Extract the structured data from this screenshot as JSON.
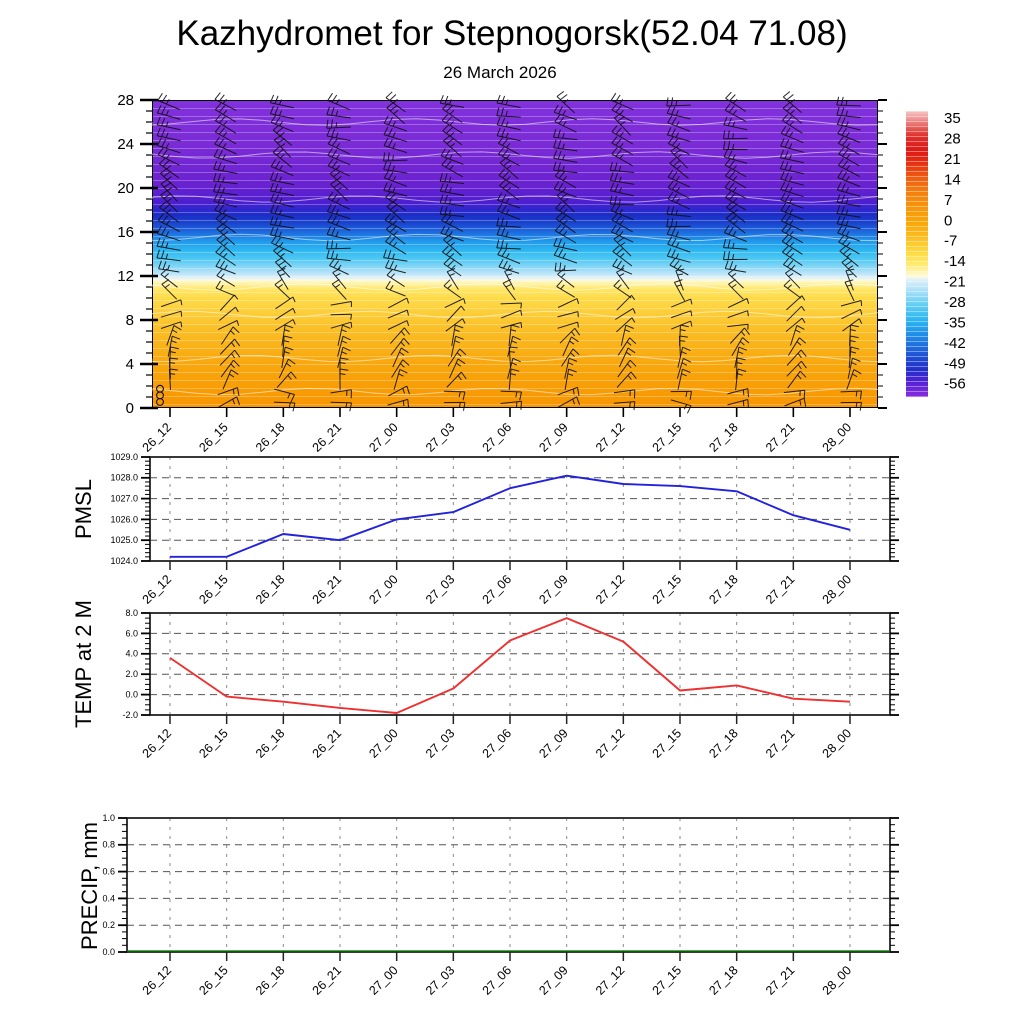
{
  "title": "Kazhydromet for Stepnogorsk(52.04 71.08)",
  "subtitle": "26 March 2026",
  "time_labels": [
    "26_12",
    "26_15",
    "26_18",
    "26_21",
    "27_00",
    "27_03",
    "27_06",
    "27_09",
    "27_12",
    "27_15",
    "27_18",
    "27_21",
    "28_00"
  ],
  "chart_data": [
    {
      "type": "heatmap",
      "name": "temperature-height-cross-section",
      "x_labels": [
        "26_12",
        "26_15",
        "26_18",
        "26_21",
        "27_00",
        "27_03",
        "27_06",
        "27_09",
        "27_12",
        "27_15",
        "27_18",
        "27_21",
        "28_00"
      ],
      "ylim": [
        0,
        28
      ],
      "y_ticks": [
        0,
        4,
        8,
        12,
        16,
        20,
        24,
        28
      ],
      "y_minor_step": 1,
      "grid": false,
      "colorbar_labels": [
        "35",
        "28",
        "21",
        "14",
        "7",
        "0",
        "-7",
        "-14",
        "-21",
        "-28",
        "-35",
        "-42",
        "-49",
        "-56"
      ],
      "colorbar_gradient": [
        {
          "p": 0.0,
          "c": "#F6C4C4"
        },
        {
          "p": 0.03,
          "c": "#EF9090"
        },
        {
          "p": 0.06,
          "c": "#E55A56"
        },
        {
          "p": 0.09,
          "c": "#DD2F2B"
        },
        {
          "p": 0.14,
          "c": "#DC1A16"
        },
        {
          "p": 0.18,
          "c": "#E42F12"
        },
        {
          "p": 0.23,
          "c": "#EE5A12"
        },
        {
          "p": 0.28,
          "c": "#F37E0E"
        },
        {
          "p": 0.33,
          "c": "#F6930A"
        },
        {
          "p": 0.39,
          "c": "#F9A708"
        },
        {
          "p": 0.44,
          "c": "#FBBD20"
        },
        {
          "p": 0.49,
          "c": "#FDD83E"
        },
        {
          "p": 0.53,
          "c": "#FFE865"
        },
        {
          "p": 0.56,
          "c": "#FFF4A8"
        },
        {
          "p": 0.578,
          "c": "#FDFAE0"
        },
        {
          "p": 0.592,
          "c": "#DCEFFA"
        },
        {
          "p": 0.63,
          "c": "#A8E0F8"
        },
        {
          "p": 0.68,
          "c": "#5FCDF4"
        },
        {
          "p": 0.73,
          "c": "#2EB6F0"
        },
        {
          "p": 0.775,
          "c": "#2194EA"
        },
        {
          "p": 0.82,
          "c": "#1F6FDE"
        },
        {
          "p": 0.865,
          "c": "#1F4AD2"
        },
        {
          "p": 0.905,
          "c": "#2430C8"
        },
        {
          "p": 0.94,
          "c": "#4A22D2"
        },
        {
          "p": 1.0,
          "c": "#8A2BE0"
        }
      ],
      "fill_gradient": [
        {
          "p": 0.0,
          "c": "#8232DC"
        },
        {
          "p": 0.15,
          "c": "#7A2BD6"
        },
        {
          "p": 0.27,
          "c": "#6B22D0"
        },
        {
          "p": 0.33,
          "c": "#4F1ECF"
        },
        {
          "p": 0.355,
          "c": "#2F27CE"
        },
        {
          "p": 0.375,
          "c": "#1C2EC6"
        },
        {
          "p": 0.4,
          "c": "#1A44CE"
        },
        {
          "p": 0.43,
          "c": "#1E6CDE"
        },
        {
          "p": 0.46,
          "c": "#219BEC"
        },
        {
          "p": 0.49,
          "c": "#2FB9F1"
        },
        {
          "p": 0.52,
          "c": "#55CAF3"
        },
        {
          "p": 0.545,
          "c": "#8FD9F6"
        },
        {
          "p": 0.565,
          "c": "#C0E6FA"
        },
        {
          "p": 0.578,
          "c": "#E4F2F7"
        },
        {
          "p": 0.586,
          "c": "#FBFADC"
        },
        {
          "p": 0.596,
          "c": "#FFF2A2"
        },
        {
          "p": 0.615,
          "c": "#FFE666"
        },
        {
          "p": 0.645,
          "c": "#FEDA48"
        },
        {
          "p": 0.7,
          "c": "#FCCB36"
        },
        {
          "p": 0.76,
          "c": "#FABB22"
        },
        {
          "p": 0.83,
          "c": "#F9AC12"
        },
        {
          "p": 0.91,
          "c": "#F8A008"
        },
        {
          "p": 1.0,
          "c": "#F79500"
        }
      ],
      "wind_barbs": {
        "note": "black wind barbs at every model level for each time step; calm circles bottom-left",
        "columns": 13,
        "levels": 28,
        "profile": [
          {
            "levels": [
              0,
              2
            ],
            "angle_deg": 8,
            "feathers": 2
          },
          {
            "levels": [
              3,
              7
            ],
            "angle_deg": 70,
            "feathers": 2
          },
          {
            "levels": [
              8,
              10
            ],
            "angle_deg": 25,
            "feathers": 1
          },
          {
            "levels": [
              11,
              12
            ],
            "angle_deg": 135,
            "feathers": 2
          },
          {
            "levels": [
              13,
              28
            ],
            "angle_deg": 158,
            "feathers": 3
          }
        ],
        "calm_circles_at": "26_12 levels 0-2"
      }
    },
    {
      "type": "line",
      "ylabel": "PMSL",
      "color": "#2222DC",
      "ylim": [
        1024,
        1029
      ],
      "y_major_step": 1,
      "y_minor_step": 0.2,
      "ytick_labels": [
        "1029.0",
        "1028.0",
        "1027.0",
        "1026.0",
        "1025.0",
        "1024.0"
      ],
      "values": [
        1024.2,
        1024.2,
        1025.3,
        1025.0,
        1026.0,
        1026.35,
        1027.5,
        1028.1,
        1027.7,
        1027.6,
        1027.35,
        1026.2,
        1025.5
      ]
    },
    {
      "type": "line",
      "ylabel": "TEMP at 2 M",
      "color": "#EE3030",
      "ylim": [
        -2,
        8
      ],
      "y_major_step": 2,
      "y_minor_step": 0.5,
      "ytick_labels": [
        "8.0",
        "6.0",
        "4.0",
        "2.0",
        "0.0",
        "-2.0"
      ],
      "values": [
        3.6,
        -0.2,
        -0.7,
        -1.3,
        -1.8,
        0.6,
        5.3,
        7.5,
        5.2,
        0.4,
        0.9,
        -0.4,
        -0.7
      ]
    },
    {
      "type": "line",
      "ylabel": "PRECIP, mm",
      "color": "#006400",
      "ylim": [
        0,
        1
      ],
      "y_major_step": 0.2,
      "y_minor_step": 0.05,
      "ytick_labels": [
        "1.0",
        "0.8",
        "0.6",
        "0.4",
        "0.2",
        "0.0"
      ],
      "values": [
        0,
        0,
        0,
        0,
        0,
        0,
        0,
        0,
        0,
        0,
        0,
        0,
        0
      ]
    }
  ]
}
